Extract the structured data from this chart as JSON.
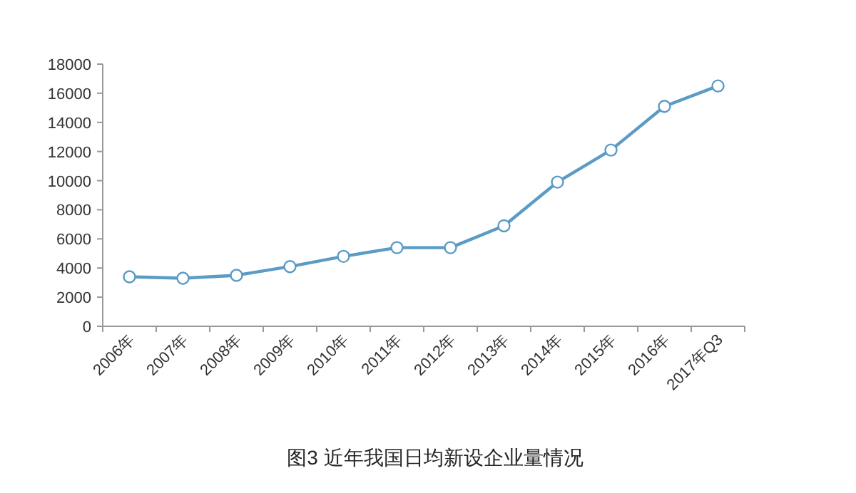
{
  "chart_data": {
    "type": "line",
    "title": "图3 近年我国日均新设企业量情况",
    "categories": [
      "2006年",
      "2007年",
      "2008年",
      "2009年",
      "2010年",
      "2011年",
      "2012年",
      "2013年",
      "2014年",
      "2015年",
      "2016年",
      "2017年Q3"
    ],
    "series": [
      {
        "color": "#5b9bc5",
        "values": [
          3400,
          3300,
          3500,
          4100,
          4800,
          5400,
          5400,
          6900,
          9900,
          12100,
          15100,
          16500
        ]
      }
    ],
    "ylim": [
      0,
      18000
    ],
    "yticks": [
      0,
      2000,
      4000,
      6000,
      8000,
      10000,
      12000,
      14000,
      16000,
      18000
    ],
    "marker": "circle"
  }
}
